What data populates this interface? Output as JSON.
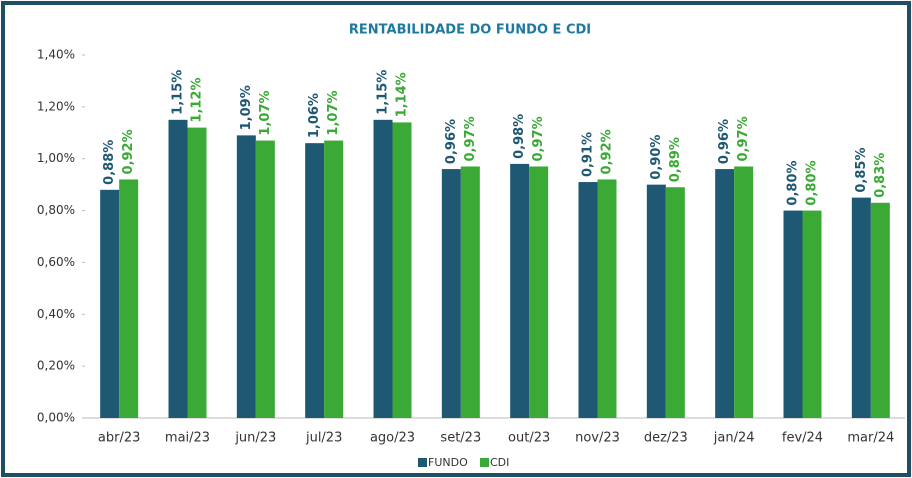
{
  "chart_data": {
    "type": "bar",
    "title": "RENTABILIDADE DO FUNDO E CDI",
    "categories": [
      "abr/23",
      "mai/23",
      "jun/23",
      "jul/23",
      "ago/23",
      "set/23",
      "out/23",
      "nov/23",
      "dez/23",
      "jan/24",
      "fev/24",
      "mar/24"
    ],
    "series": [
      {
        "name": "FUNDO",
        "color": "#1f5873",
        "values": [
          0.88,
          1.15,
          1.09,
          1.06,
          1.15,
          0.96,
          0.98,
          0.91,
          0.9,
          0.96,
          0.8,
          0.85
        ],
        "value_labels": [
          "0,88%",
          "1,15%",
          "1,09%",
          "1,06%",
          "1,15%",
          "0,96%",
          "0,98%",
          "0,91%",
          "0,90%",
          "0,96%",
          "0,80%",
          "0,85%"
        ]
      },
      {
        "name": "CDI",
        "color": "#3aa935",
        "values": [
          0.92,
          1.12,
          1.07,
          1.07,
          1.14,
          0.97,
          0.97,
          0.92,
          0.89,
          0.97,
          0.8,
          0.83
        ],
        "value_labels": [
          "0,92%",
          "1,12%",
          "1,07%",
          "1,07%",
          "1,14%",
          "0,97%",
          "0,97%",
          "0,92%",
          "0,89%",
          "0,97%",
          "0,80%",
          "0,83%"
        ]
      }
    ],
    "ylim": [
      0,
      1.4
    ],
    "yticks": [
      {
        "value": 0,
        "label": "0,00%"
      },
      {
        "value": 0.2,
        "label": "0,20%"
      },
      {
        "value": 0.4,
        "label": "0,40%"
      },
      {
        "value": 0.6,
        "label": "0,60%"
      },
      {
        "value": 0.8,
        "label": "0,80%"
      },
      {
        "value": 1.0,
        "label": "1,00%"
      },
      {
        "value": 1.2,
        "label": "1,20%"
      },
      {
        "value": 1.4,
        "label": "1,40%"
      }
    ],
    "legend": "bottom"
  }
}
